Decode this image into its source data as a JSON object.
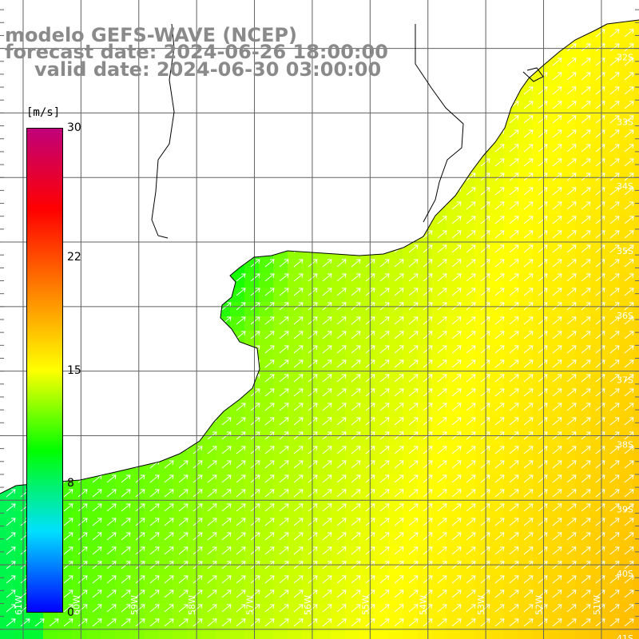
{
  "title": {
    "line1": "modelo GEFS-WAVE (NCEP)",
    "line2": "forecast date: 2024-06-26 18:00:00",
    "line3": "valid date: 2024-06-30 03:00:00"
  },
  "colorbar": {
    "unit": "[m/s]",
    "ticks": [
      "30",
      "22",
      "15",
      "8",
      "0"
    ],
    "tick_values": [
      30,
      22,
      15,
      8,
      0
    ],
    "min": 0,
    "max": 30,
    "colors": [
      "#0000ff",
      "#00e0ff",
      "#00ff00",
      "#ffff00",
      "#ff8000",
      "#ff0000",
      "#c0007a"
    ]
  },
  "map": {
    "lat_labels": [
      "32S",
      "33S",
      "34S",
      "35S",
      "36S",
      "37S",
      "38S",
      "39S",
      "40S",
      "41S"
    ],
    "lat_values": [
      -32,
      -33,
      -34,
      -35,
      -36,
      -37,
      -38,
      -39,
      -40,
      -41
    ],
    "lon_labels": [
      "61W",
      "60W",
      "59W",
      "58W",
      "57W",
      "56W",
      "55W",
      "54W",
      "53W",
      "52W",
      "51W"
    ],
    "lon_values": [
      -61,
      -60,
      -59,
      -58,
      -57,
      -56,
      -55,
      -54,
      -53,
      -52,
      -51
    ],
    "lon_range": [
      -61.4,
      -50.35
    ],
    "lat_range": [
      -41.15,
      -31.25
    ],
    "land_color": "#ffffff",
    "coast_color": "#000000",
    "grid_color": "#606060",
    "arrow_color": "#ffffff",
    "wind_direction": "southwesterly (arrows pointing north-east)"
  }
}
